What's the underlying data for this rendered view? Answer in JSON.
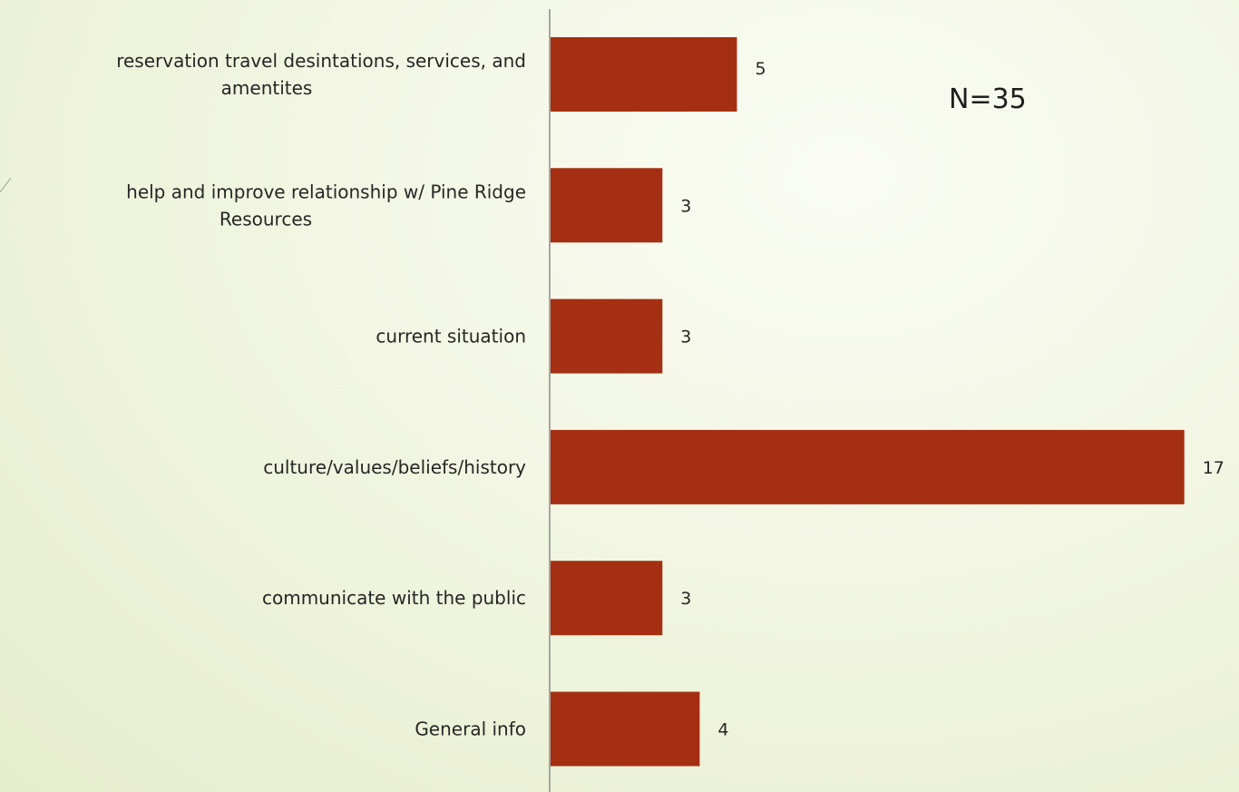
{
  "chart_data": {
    "type": "bar",
    "orientation": "horizontal",
    "categories": [
      "reservation travel desintations, services, and amentites",
      "help and improve relationship w/ Pine Ridge Resources",
      "current situation",
      "culture/values/beliefs/history",
      "communicate with the public",
      "General info"
    ],
    "category_lines": [
      [
        "reservation travel desintations, services, and",
        "amentites"
      ],
      [
        "help and improve relationship w/ Pine Ridge",
        "Resources"
      ],
      [
        "current situation"
      ],
      [
        "culture/values/beliefs/history"
      ],
      [
        "communicate with the public"
      ],
      [
        "General info"
      ]
    ],
    "values": [
      5,
      3,
      3,
      17,
      3,
      4
    ],
    "value_labels": [
      "5",
      "3",
      "3",
      "17",
      "3",
      "4"
    ],
    "annotation": "N=35",
    "xlim": [
      0,
      17
    ],
    "grid": false,
    "legend": "none",
    "bar_color": "#a52f12",
    "axis_color": "#8c8c8c"
  }
}
